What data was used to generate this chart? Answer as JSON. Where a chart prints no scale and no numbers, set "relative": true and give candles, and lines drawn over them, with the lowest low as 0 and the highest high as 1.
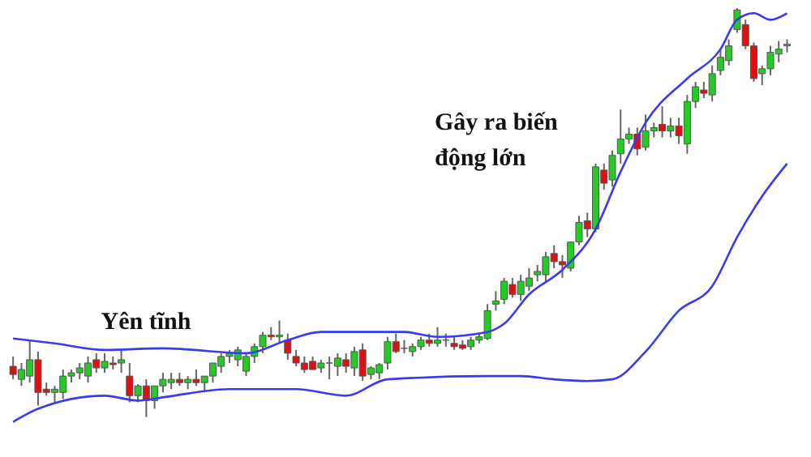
{
  "chart_data": {
    "type": "candlestick",
    "relative": true,
    "annotations": [
      "Yên tĩnh",
      "Gây ra biến\nđộng lớn"
    ],
    "categories": [
      null,
      null,
      null,
      null,
      null,
      null,
      null,
      null,
      null,
      null,
      null,
      null,
      null,
      null,
      null,
      null,
      null,
      null,
      null,
      null,
      null,
      null,
      null,
      null,
      null,
      null,
      null,
      null,
      null,
      null,
      null,
      null,
      null,
      null,
      null,
      null,
      null,
      null,
      null,
      null,
      null,
      null,
      null,
      null,
      null,
      null,
      null,
      null,
      null,
      null,
      null,
      null,
      null,
      null,
      null,
      null,
      null,
      null,
      null,
      null,
      null,
      null,
      null,
      null,
      null,
      null,
      null,
      null,
      null,
      null,
      null,
      null,
      null,
      null,
      null,
      null,
      null,
      null,
      null,
      null,
      null,
      null,
      null,
      null,
      null,
      null,
      null,
      null,
      null,
      null,
      null,
      null,
      null,
      null
    ],
    "ohlc": [
      [
        0.124,
        0.148,
        0.092,
        0.104
      ],
      [
        0.092,
        0.132,
        0.076,
        0.116
      ],
      [
        0.1,
        0.188,
        0.084,
        0.14
      ],
      [
        0.14,
        0.16,
        0.028,
        0.06
      ],
      [
        0.068,
        0.084,
        0.052,
        0.06
      ],
      [
        0.06,
        0.076,
        0.036,
        0.068
      ],
      [
        0.06,
        0.116,
        0.044,
        0.1
      ],
      [
        0.1,
        0.116,
        0.084,
        0.108
      ],
      [
        0.108,
        0.132,
        0.092,
        0.12
      ],
      [
        0.1,
        0.148,
        0.084,
        0.132
      ],
      [
        0.14,
        0.156,
        0.108,
        0.12
      ],
      [
        0.12,
        0.156,
        0.108,
        0.136
      ],
      [
        0.132,
        0.148,
        0.116,
        0.128
      ],
      [
        0.132,
        0.164,
        0.108,
        0.14
      ],
      [
        0.1,
        0.132,
        0.036,
        0.052
      ],
      [
        0.052,
        0.08,
        0.036,
        0.076
      ],
      [
        0.076,
        0.092,
        0.0,
        0.04
      ],
      [
        0.04,
        0.076,
        0.02,
        0.076
      ],
      [
        0.076,
        0.108,
        0.06,
        0.092
      ],
      [
        0.084,
        0.108,
        0.068,
        0.092
      ],
      [
        0.092,
        0.108,
        0.076,
        0.084
      ],
      [
        0.084,
        0.1,
        0.068,
        0.092
      ],
      [
        0.092,
        0.116,
        0.076,
        0.084
      ],
      [
        0.084,
        0.1,
        0.06,
        0.1
      ],
      [
        0.1,
        0.132,
        0.084,
        0.132
      ],
      [
        0.124,
        0.156,
        0.108,
        0.148
      ],
      [
        0.148,
        0.164,
        0.132,
        0.156
      ],
      [
        0.14,
        0.172,
        0.124,
        0.164
      ],
      [
        0.112,
        0.156,
        0.1,
        0.148
      ],
      [
        0.148,
        0.18,
        0.132,
        0.172
      ],
      [
        0.172,
        0.208,
        0.156,
        0.2
      ],
      [
        0.2,
        0.22,
        0.188,
        0.196
      ],
      [
        0.196,
        0.236,
        0.18,
        0.2
      ],
      [
        0.188,
        0.204,
        0.14,
        0.156
      ],
      [
        0.148,
        0.164,
        0.124,
        0.132
      ],
      [
        0.132,
        0.148,
        0.108,
        0.116
      ],
      [
        0.136,
        0.148,
        0.116,
        0.116
      ],
      [
        0.12,
        0.14,
        0.108,
        0.132
      ],
      [
        0.132,
        0.148,
        0.092,
        0.132
      ],
      [
        0.124,
        0.156,
        0.1,
        0.144
      ],
      [
        0.14,
        0.156,
        0.108,
        0.124
      ],
      [
        0.12,
        0.172,
        0.1,
        0.16
      ],
      [
        0.164,
        0.18,
        0.088,
        0.1
      ],
      [
        0.104,
        0.124,
        0.092,
        0.12
      ],
      [
        0.108,
        0.132,
        0.092,
        0.128
      ],
      [
        0.132,
        0.196,
        0.116,
        0.184
      ],
      [
        0.184,
        0.204,
        0.156,
        0.16
      ],
      [
        0.168,
        0.188,
        0.156,
        0.168
      ],
      [
        0.16,
        0.18,
        0.148,
        0.172
      ],
      [
        0.172,
        0.196,
        0.164,
        0.188
      ],
      [
        0.188,
        0.204,
        0.172,
        0.18
      ],
      [
        0.18,
        0.22,
        0.172,
        0.188
      ],
      [
        0.188,
        0.204,
        0.172,
        0.188
      ],
      [
        0.18,
        0.196,
        0.164,
        0.172
      ],
      [
        0.176,
        0.188,
        0.164,
        0.168
      ],
      [
        0.172,
        0.196,
        0.164,
        0.188
      ],
      [
        0.188,
        0.204,
        0.18,
        0.196
      ],
      [
        0.192,
        0.276,
        0.188,
        0.26
      ],
      [
        0.276,
        0.308,
        0.26,
        0.284
      ],
      [
        0.288,
        0.34,
        0.276,
        0.332
      ],
      [
        0.324,
        0.34,
        0.292,
        0.3
      ],
      [
        0.3,
        0.348,
        0.284,
        0.332
      ],
      [
        0.32,
        0.364,
        0.308,
        0.34
      ],
      [
        0.348,
        0.372,
        0.332,
        0.356
      ],
      [
        0.348,
        0.404,
        0.332,
        0.392
      ],
      [
        0.4,
        0.42,
        0.364,
        0.38
      ],
      [
        0.38,
        0.396,
        0.34,
        0.372
      ],
      [
        0.364,
        0.428,
        0.356,
        0.428
      ],
      [
        0.428,
        0.492,
        0.42,
        0.476
      ],
      [
        0.48,
        0.5,
        0.44,
        0.46
      ],
      [
        0.46,
        0.62,
        0.452,
        0.612
      ],
      [
        0.604,
        0.62,
        0.556,
        0.572
      ],
      [
        0.58,
        0.652,
        0.564,
        0.64
      ],
      [
        0.644,
        0.752,
        0.62,
        0.68
      ],
      [
        0.68,
        0.708,
        0.668,
        0.692
      ],
      [
        0.692,
        0.708,
        0.64,
        0.656
      ],
      [
        0.66,
        0.74,
        0.652,
        0.7
      ],
      [
        0.7,
        0.72,
        0.684,
        0.708
      ],
      [
        0.716,
        0.76,
        0.684,
        0.7
      ],
      [
        0.7,
        0.732,
        0.684,
        0.712
      ],
      [
        0.712,
        0.732,
        0.668,
        0.688
      ],
      [
        0.668,
        0.788,
        0.644,
        0.772
      ],
      [
        0.772,
        0.82,
        0.756,
        0.808
      ],
      [
        0.8,
        0.82,
        0.78,
        0.792
      ],
      [
        0.788,
        0.86,
        0.772,
        0.84
      ],
      [
        0.848,
        0.9,
        0.836,
        0.88
      ],
      [
        0.872,
        0.924,
        0.86,
        0.908
      ],
      [
        0.948,
        1.0,
        0.94,
        0.996
      ],
      [
        0.96,
        0.972,
        0.9,
        0.908
      ],
      [
        0.908,
        0.916,
        0.82,
        0.828
      ],
      [
        0.84,
        0.86,
        0.812,
        0.852
      ],
      [
        0.852,
        0.908,
        0.836,
        0.892
      ],
      [
        0.888,
        0.92,
        0.868,
        0.9
      ],
      [
        0.908,
        0.924,
        0.892,
        0.912
      ]
    ],
    "series": [
      {
        "type": "line",
        "color": "#3a3af0",
        "values": [
          0.192,
          null,
          null,
          null,
          null,
          0.18,
          null,
          null,
          null,
          null,
          null,
          0.164,
          null,
          null,
          null,
          null,
          null,
          null,
          0.168,
          null,
          null,
          null,
          null,
          null,
          null,
          null,
          null,
          null,
          0.156,
          null,
          null,
          null,
          null,
          0.188,
          null,
          null,
          null,
          0.208,
          null,
          null,
          null,
          null,
          null,
          null,
          null,
          null,
          null,
          0.208,
          null,
          null,
          null,
          0.196,
          null,
          null,
          null,
          null,
          null,
          0.208,
          null,
          0.228,
          null,
          null,
          0.3,
          null,
          null,
          null,
          0.36,
          null,
          null,
          null,
          0.46,
          null,
          null,
          0.6,
          null,
          null,
          0.72,
          null,
          null,
          null,
          null,
          0.828,
          null,
          null,
          null,
          0.9,
          null,
          0.972,
          null,
          0.988,
          null,
          0.972,
          null,
          0.988
        ]
      },
      {
        "type": "line",
        "color": "#3a3af0",
        "values": [
          -0.012,
          null,
          null,
          0.02,
          null,
          null,
          null,
          null,
          null,
          null,
          null,
          0.052,
          null,
          null,
          null,
          0.04,
          null,
          null,
          0.048,
          null,
          null,
          null,
          null,
          null,
          null,
          null,
          0.068,
          null,
          null,
          null,
          null,
          null,
          null,
          null,
          0.068,
          null,
          null,
          null,
          null,
          null,
          0.052,
          null,
          null,
          null,
          null,
          0.092,
          null,
          null,
          null,
          null,
          null,
          null,
          null,
          null,
          null,
          null,
          null,
          0.1,
          null,
          null,
          null,
          0.1,
          null,
          null,
          null,
          0.092,
          null,
          null,
          null,
          0.088,
          null,
          null,
          0.092,
          null,
          null,
          null,
          0.16,
          null,
          null,
          null,
          0.26,
          null,
          null,
          null,
          0.32,
          null,
          null,
          0.44,
          null,
          null,
          0.54,
          null,
          null,
          0.62
        ]
      }
    ]
  }
}
